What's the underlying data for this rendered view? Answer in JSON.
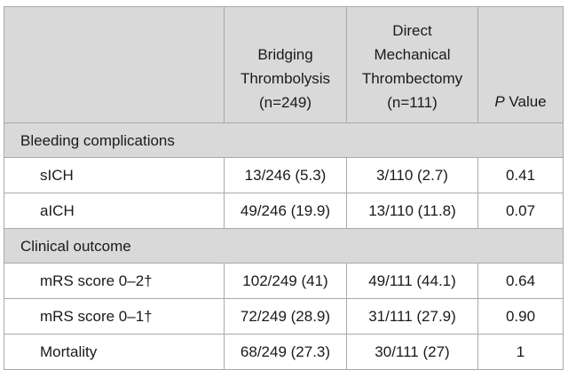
{
  "header": {
    "col1": [
      "Bridging",
      "Thrombolysis",
      "(n=249)"
    ],
    "col2": [
      "Direct",
      "Mechanical",
      "Thrombectomy",
      "(n=111)"
    ],
    "col3_italic": "P",
    "col3_rest": " Value"
  },
  "sections": [
    {
      "title": "Bleeding complications",
      "rows": [
        {
          "label": "sICH",
          "bridging": "13/246 (5.3)",
          "direct": "3/110 (2.7)",
          "p": "0.41"
        },
        {
          "label": "aICH",
          "bridging": "49/246 (19.9)",
          "direct": "13/110 (11.8)",
          "p": "0.07"
        }
      ]
    },
    {
      "title": "Clinical outcome",
      "rows": [
        {
          "label": "mRS score 0–2†",
          "bridging": "102/249 (41)",
          "direct": "49/111 (44.1)",
          "p": "0.64"
        },
        {
          "label": "mRS score 0–1†",
          "bridging": "72/249 (28.9)",
          "direct": "31/111 (27.9)",
          "p": "0.90"
        },
        {
          "label": "Mortality",
          "bridging": "68/249 (27.3)",
          "direct": "30/111 (27)",
          "p": "1"
        }
      ]
    }
  ]
}
